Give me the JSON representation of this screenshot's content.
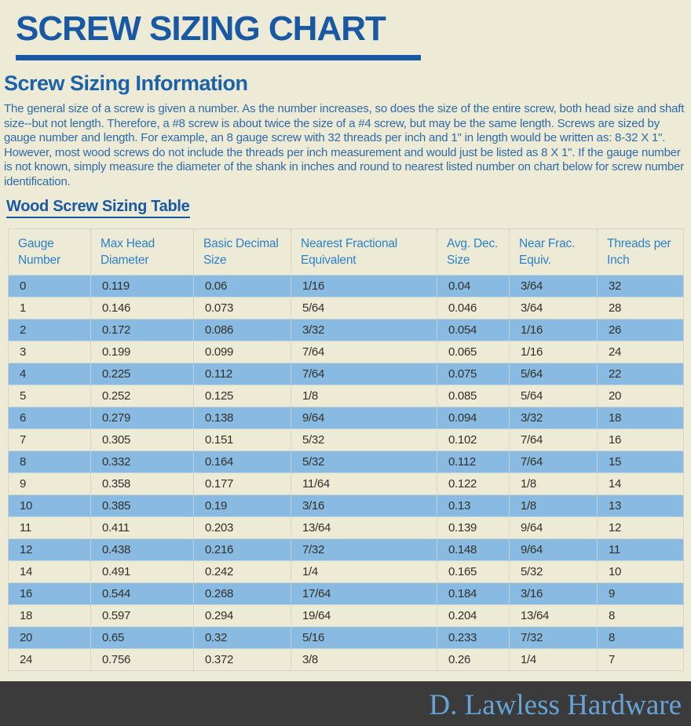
{
  "page": {
    "title": "SCREW SIZING CHART",
    "section_heading": "Screw Sizing Information",
    "intro_paragraph": "The general size of a screw is given a number. As the number increases, so does the size of the entire screw, both head size and shaft size--but not length. Therefore, a #8 screw is about twice the size of a #4 screw, but may be the same length. Screws are sized by gauge number and length. For example, an 8 gauge screw with 32 threads per inch and 1\" in length would be written as: 8-32 X 1\". However, most wood screws do not include the threads per inch measurement and would just be listed as 8 X 1\". If the gauge number is not known, simply measure the diameter of the shank in inches and round to nearest listed number on chart below for screw number identification.",
    "table_heading": "Wood Screw Sizing Table",
    "footer_brand": "D. Lawless Hardware"
  },
  "colors": {
    "page_background": "#edead6",
    "title_blue": "#1959a3",
    "paragraph_blue": "#2f6ba6",
    "table_header_text_blue": "#2c81c5",
    "row_highlight_blue": "#89bbe2",
    "cell_text": "#32302a",
    "footer_background": "#3b3b3b",
    "footer_text_blue": "#66a4d8"
  },
  "chart_data": {
    "type": "table",
    "title": "Wood Screw Sizing Table",
    "columns": [
      "Gauge Number",
      "Max Head Diameter",
      "Basic Decimal Size",
      "Nearest Fractional Equivalent",
      "Avg. Dec. Size",
      "Near Frac. Equiv.",
      "Threads per Inch"
    ],
    "rows": [
      [
        "0",
        "0.119",
        "0.06",
        "1/16",
        "0.04",
        "3/64",
        "32"
      ],
      [
        "1",
        "0.146",
        "0.073",
        "5/64",
        "0.046",
        "3/64",
        "28"
      ],
      [
        "2",
        "0.172",
        "0.086",
        "3/32",
        "0.054",
        "1/16",
        "26"
      ],
      [
        "3",
        "0.199",
        "0.099",
        "7/64",
        "0.065",
        "1/16",
        "24"
      ],
      [
        "4",
        "0.225",
        "0.112",
        "7/64",
        "0.075",
        "5/64",
        "22"
      ],
      [
        "5",
        "0.252",
        "0.125",
        "1/8",
        "0.085",
        "5/64",
        "20"
      ],
      [
        "6",
        "0.279",
        "0.138",
        "9/64",
        "0.094",
        "3/32",
        "18"
      ],
      [
        "7",
        "0.305",
        "0.151",
        "5/32",
        "0.102",
        "7/64",
        "16"
      ],
      [
        "8",
        "0.332",
        "0.164",
        "5/32",
        "0.112",
        "7/64",
        "15"
      ],
      [
        "9",
        "0.358",
        "0.177",
        "11/64",
        "0.122",
        "1/8",
        "14"
      ],
      [
        "10",
        "0.385",
        "0.19",
        "3/16",
        "0.13",
        "1/8",
        "13"
      ],
      [
        "11",
        "0.411",
        "0.203",
        "13/64",
        "0.139",
        "9/64",
        "12"
      ],
      [
        "12",
        "0.438",
        "0.216",
        "7/32",
        "0.148",
        "9/64",
        "11"
      ],
      [
        "14",
        "0.491",
        "0.242",
        "1/4",
        "0.165",
        "5/32",
        "10"
      ],
      [
        "16",
        "0.544",
        "0.268",
        "17/64",
        "0.184",
        "3/16",
        "9"
      ],
      [
        "18",
        "0.597",
        "0.294",
        "19/64",
        "0.204",
        "13/64",
        "8"
      ],
      [
        "20",
        "0.65",
        "0.32",
        "5/16",
        "0.233",
        "7/32",
        "8"
      ],
      [
        "24",
        "0.756",
        "0.372",
        "3/8",
        "0.26",
        "1/4",
        "7"
      ]
    ],
    "row_striping": "even rows (0,2,4,...) highlighted blue, odd rows cream",
    "legend_position": "none",
    "grid": true
  }
}
